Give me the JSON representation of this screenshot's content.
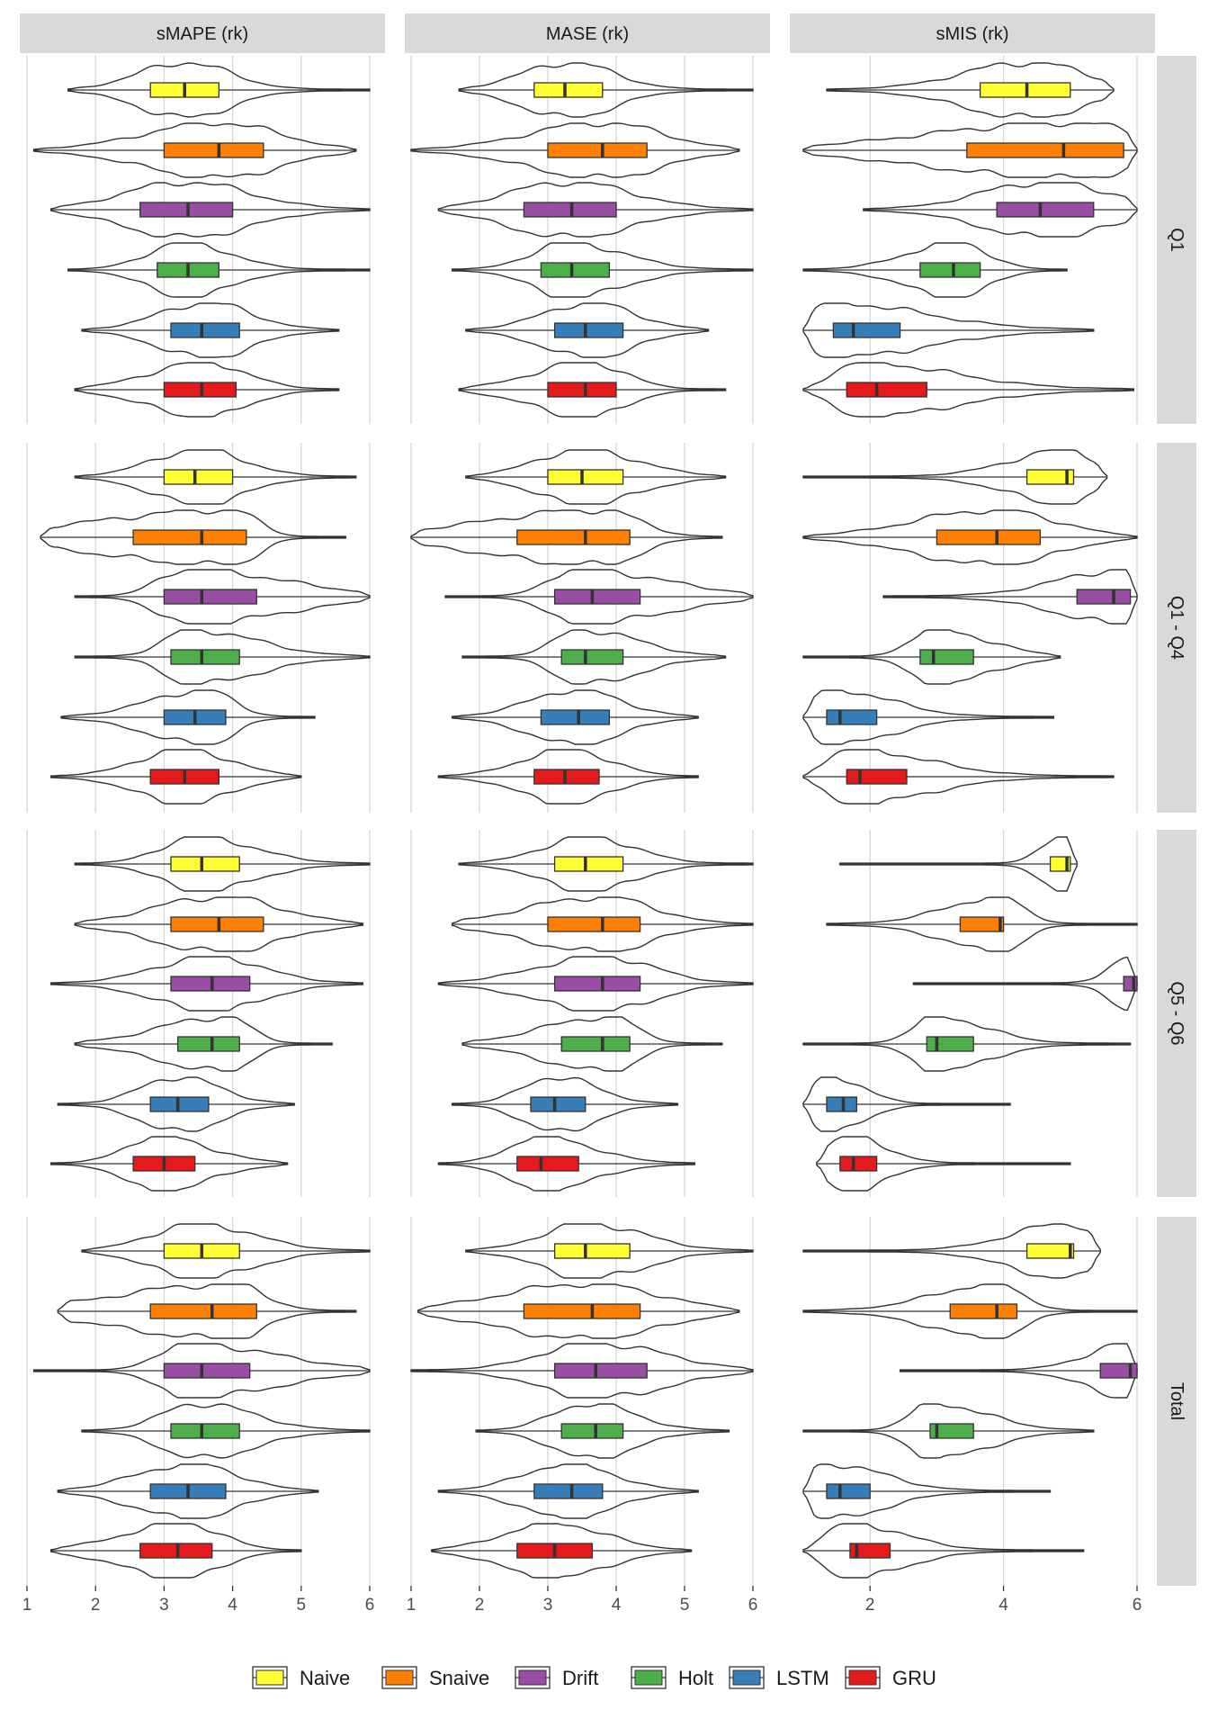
{
  "chart_data": {
    "type": "violin_box_faceted",
    "title": "",
    "columns": [
      {
        "label": "sMAPE (rk)",
        "xlim": [
          1,
          6
        ],
        "ticks": [
          1,
          2,
          3,
          4,
          5,
          6
        ]
      },
      {
        "label": "MASE (rk)",
        "xlim": [
          1,
          6
        ],
        "ticks": [
          1,
          2,
          3,
          4,
          5,
          6
        ]
      },
      {
        "label": "sMIS (rk)",
        "xlim": [
          1,
          6
        ],
        "ticks": [
          2,
          4,
          6
        ]
      }
    ],
    "rows": [
      "Q1",
      "Q1 - Q4",
      "Q5 - Q6",
      "Total"
    ],
    "grid": true,
    "legend_position": "bottom",
    "series": [
      {
        "name": "Naive",
        "color": "#FFFF33"
      },
      {
        "name": "Snaive",
        "color": "#FF7F00"
      },
      {
        "name": "Drift",
        "color": "#984EA3"
      },
      {
        "name": "Holt",
        "color": "#4DAF4A"
      },
      {
        "name": "LSTM",
        "color": "#377EB8"
      },
      {
        "name": "GRU",
        "color": "#E41A1C"
      }
    ],
    "panels": [
      [
        [
          {
            "min": 1.6,
            "q1": 2.8,
            "med": 3.3,
            "q3": 3.8,
            "max": 6.0,
            "mode": 3.3
          },
          {
            "min": 1.1,
            "q1": 3.0,
            "med": 3.8,
            "q3": 4.45,
            "max": 5.8,
            "mode": 3.8
          },
          {
            "min": 1.35,
            "q1": 2.65,
            "med": 3.35,
            "q3": 4.0,
            "max": 6.0,
            "mode": 3.3
          },
          {
            "min": 1.6,
            "q1": 2.9,
            "med": 3.35,
            "q3": 3.8,
            "max": 6.0,
            "mode": 3.3
          },
          {
            "min": 1.8,
            "q1": 3.1,
            "med": 3.55,
            "q3": 4.1,
            "max": 5.55,
            "mode": 3.6
          },
          {
            "min": 1.7,
            "q1": 3.0,
            "med": 3.55,
            "q3": 4.05,
            "max": 5.55,
            "mode": 3.6
          }
        ],
        [
          {
            "min": 1.7,
            "q1": 2.8,
            "med": 3.25,
            "q3": 3.8,
            "max": 6.0,
            "mode": 3.3
          },
          {
            "min": 1.0,
            "q1": 3.0,
            "med": 3.8,
            "q3": 4.45,
            "max": 5.8,
            "mode": 3.8
          },
          {
            "min": 1.4,
            "q1": 2.65,
            "med": 3.35,
            "q3": 4.0,
            "max": 6.0,
            "mode": 3.3
          },
          {
            "min": 1.6,
            "q1": 2.9,
            "med": 3.35,
            "q3": 3.9,
            "max": 6.0,
            "mode": 3.3
          },
          {
            "min": 1.8,
            "q1": 3.1,
            "med": 3.55,
            "q3": 4.1,
            "max": 5.35,
            "mode": 3.6
          },
          {
            "min": 1.7,
            "q1": 3.0,
            "med": 3.55,
            "q3": 4.0,
            "max": 5.6,
            "mode": 3.6
          }
        ],
        [
          {
            "min": 1.35,
            "q1": 3.65,
            "med": 4.35,
            "q3": 5.0,
            "max": 5.65,
            "mode": 4.4
          },
          {
            "min": 1.0,
            "q1": 3.45,
            "med": 4.9,
            "q3": 5.8,
            "max": 6.0,
            "mode": 5.0
          },
          {
            "min": 1.9,
            "q1": 3.9,
            "med": 4.55,
            "q3": 5.35,
            "max": 6.0,
            "mode": 4.6
          },
          {
            "min": 1.0,
            "q1": 2.75,
            "med": 3.25,
            "q3": 3.65,
            "max": 4.95,
            "mode": 3.3
          },
          {
            "min": 1.0,
            "q1": 1.45,
            "med": 1.75,
            "q3": 2.45,
            "max": 5.35,
            "mode": 1.4
          },
          {
            "min": 1.0,
            "q1": 1.65,
            "med": 2.1,
            "q3": 2.85,
            "max": 5.95,
            "mode": 1.8
          }
        ]
      ],
      [
        [
          {
            "min": 1.7,
            "q1": 3.0,
            "med": 3.45,
            "q3": 4.0,
            "max": 5.8,
            "mode": 3.5
          },
          {
            "min": 1.2,
            "q1": 2.55,
            "med": 3.55,
            "q3": 4.2,
            "max": 5.65,
            "mode": 4.0
          },
          {
            "min": 1.7,
            "q1": 3.0,
            "med": 3.55,
            "q3": 4.35,
            "max": 6.0,
            "mode": 3.3
          },
          {
            "min": 1.7,
            "q1": 3.1,
            "med": 3.55,
            "q3": 4.1,
            "max": 6.0,
            "mode": 3.4
          },
          {
            "min": 1.5,
            "q1": 3.0,
            "med": 3.45,
            "q3": 3.9,
            "max": 5.2,
            "mode": 3.6
          },
          {
            "min": 1.35,
            "q1": 2.8,
            "med": 3.3,
            "q3": 3.8,
            "max": 5.0,
            "mode": 3.3
          }
        ],
        [
          {
            "min": 1.8,
            "q1": 3.0,
            "med": 3.5,
            "q3": 4.1,
            "max": 5.6,
            "mode": 3.5
          },
          {
            "min": 1.0,
            "q1": 2.55,
            "med": 3.55,
            "q3": 4.2,
            "max": 5.55,
            "mode": 3.8
          },
          {
            "min": 1.5,
            "q1": 3.1,
            "med": 3.65,
            "q3": 4.35,
            "max": 6.0,
            "mode": 3.4
          },
          {
            "min": 1.75,
            "q1": 3.2,
            "med": 3.55,
            "q3": 4.1,
            "max": 5.6,
            "mode": 3.5
          },
          {
            "min": 1.6,
            "q1": 2.9,
            "med": 3.45,
            "q3": 3.9,
            "max": 5.2,
            "mode": 3.4
          },
          {
            "min": 1.4,
            "q1": 2.8,
            "med": 3.25,
            "q3": 3.75,
            "max": 5.2,
            "mode": 3.3
          }
        ],
        [
          {
            "min": 1.0,
            "q1": 4.35,
            "med": 4.95,
            "q3": 5.05,
            "max": 5.55,
            "mode": 5.0
          },
          {
            "min": 1.0,
            "q1": 3.0,
            "med": 3.9,
            "q3": 4.55,
            "max": 6.0,
            "mode": 3.9
          },
          {
            "min": 2.2,
            "q1": 5.1,
            "med": 5.65,
            "q3": 5.9,
            "max": 6.0,
            "mode": 5.85
          },
          {
            "min": 1.0,
            "q1": 2.75,
            "med": 2.95,
            "q3": 3.55,
            "max": 4.85,
            "mode": 2.95
          },
          {
            "min": 1.0,
            "q1": 1.35,
            "med": 1.55,
            "q3": 2.1,
            "max": 4.75,
            "mode": 1.45
          },
          {
            "min": 1.0,
            "q1": 1.65,
            "med": 1.85,
            "q3": 2.55,
            "max": 5.65,
            "mode": 1.7
          }
        ]
      ],
      [
        [
          {
            "min": 1.7,
            "q1": 3.1,
            "med": 3.55,
            "q3": 4.1,
            "max": 6.0,
            "mode": 3.5
          },
          {
            "min": 1.7,
            "q1": 3.1,
            "med": 3.8,
            "q3": 4.45,
            "max": 5.9,
            "mode": 3.8
          },
          {
            "min": 1.35,
            "q1": 3.1,
            "med": 3.7,
            "q3": 4.25,
            "max": 5.9,
            "mode": 3.7
          },
          {
            "min": 1.7,
            "q1": 3.2,
            "med": 3.7,
            "q3": 4.1,
            "max": 5.45,
            "mode": 3.9
          },
          {
            "min": 1.45,
            "q1": 2.8,
            "med": 3.2,
            "q3": 3.65,
            "max": 4.9,
            "mode": 3.2
          },
          {
            "min": 1.35,
            "q1": 2.55,
            "med": 3.0,
            "q3": 3.45,
            "max": 4.8,
            "mode": 2.9
          }
        ],
        [
          {
            "min": 1.7,
            "q1": 3.1,
            "med": 3.55,
            "q3": 4.1,
            "max": 6.0,
            "mode": 3.6
          },
          {
            "min": 1.6,
            "q1": 3.0,
            "med": 3.8,
            "q3": 4.35,
            "max": 6.0,
            "mode": 3.8
          },
          {
            "min": 1.4,
            "q1": 3.1,
            "med": 3.8,
            "q3": 4.35,
            "max": 6.0,
            "mode": 3.8
          },
          {
            "min": 1.75,
            "q1": 3.2,
            "med": 3.8,
            "q3": 4.2,
            "max": 5.55,
            "mode": 3.9
          },
          {
            "min": 1.6,
            "q1": 2.75,
            "med": 3.1,
            "q3": 3.55,
            "max": 4.9,
            "mode": 3.1
          },
          {
            "min": 1.4,
            "q1": 2.55,
            "med": 2.9,
            "q3": 3.45,
            "max": 5.15,
            "mode": 2.9
          }
        ],
        [
          {
            "min": 1.55,
            "q1": 4.7,
            "med": 4.95,
            "q3": 5.0,
            "max": 5.1,
            "mode": 4.95
          },
          {
            "min": 1.35,
            "q1": 3.35,
            "med": 3.95,
            "q3": 4.0,
            "max": 6.0,
            "mode": 3.95
          },
          {
            "min": 2.65,
            "q1": 5.8,
            "med": 5.95,
            "q3": 6.0,
            "max": 6.0,
            "mode": 5.97
          },
          {
            "min": 1.0,
            "q1": 2.85,
            "med": 3.0,
            "q3": 3.55,
            "max": 5.9,
            "mode": 3.0
          },
          {
            "min": 1.0,
            "q1": 1.35,
            "med": 1.6,
            "q3": 1.8,
            "max": 4.1,
            "mode": 1.45
          },
          {
            "min": 1.2,
            "q1": 1.55,
            "med": 1.75,
            "q3": 2.1,
            "max": 5.0,
            "mode": 1.7
          }
        ]
      ],
      [
        [
          {
            "min": 1.8,
            "q1": 3.0,
            "med": 3.55,
            "q3": 4.1,
            "max": 6.0,
            "mode": 3.5
          },
          {
            "min": 1.45,
            "q1": 2.8,
            "med": 3.7,
            "q3": 4.35,
            "max": 5.8,
            "mode": 4.0
          },
          {
            "min": 1.1,
            "q1": 3.0,
            "med": 3.55,
            "q3": 4.25,
            "max": 6.0,
            "mode": 3.3
          },
          {
            "min": 1.8,
            "q1": 3.1,
            "med": 3.55,
            "q3": 4.1,
            "max": 6.0,
            "mode": 3.5
          },
          {
            "min": 1.45,
            "q1": 2.8,
            "med": 3.35,
            "q3": 3.9,
            "max": 5.25,
            "mode": 3.4
          },
          {
            "min": 1.35,
            "q1": 2.65,
            "med": 3.2,
            "q3": 3.7,
            "max": 5.0,
            "mode": 3.3
          }
        ],
        [
          {
            "min": 1.8,
            "q1": 3.1,
            "med": 3.55,
            "q3": 4.2,
            "max": 6.0,
            "mode": 3.6
          },
          {
            "min": 1.1,
            "q1": 2.65,
            "med": 3.65,
            "q3": 4.35,
            "max": 5.8,
            "mode": 3.6
          },
          {
            "min": 1.0,
            "q1": 3.1,
            "med": 3.7,
            "q3": 4.45,
            "max": 6.0,
            "mode": 3.7
          },
          {
            "min": 1.95,
            "q1": 3.2,
            "med": 3.7,
            "q3": 4.1,
            "max": 5.65,
            "mode": 3.6
          },
          {
            "min": 1.4,
            "q1": 2.8,
            "med": 3.35,
            "q3": 3.8,
            "max": 5.2,
            "mode": 3.3
          },
          {
            "min": 1.3,
            "q1": 2.55,
            "med": 3.1,
            "q3": 3.65,
            "max": 5.1,
            "mode": 3.1
          }
        ],
        [
          {
            "min": 1.0,
            "q1": 4.35,
            "med": 5.0,
            "q3": 5.05,
            "max": 5.45,
            "mode": 5.0
          },
          {
            "min": 1.0,
            "q1": 3.2,
            "med": 3.9,
            "q3": 4.2,
            "max": 6.0,
            "mode": 3.9
          },
          {
            "min": 2.45,
            "q1": 5.45,
            "med": 5.9,
            "q3": 6.0,
            "max": 6.0,
            "mode": 5.95
          },
          {
            "min": 1.0,
            "q1": 2.9,
            "med": 3.0,
            "q3": 3.55,
            "max": 5.35,
            "mode": 2.95
          },
          {
            "min": 1.0,
            "q1": 1.35,
            "med": 1.55,
            "q3": 2.0,
            "max": 4.7,
            "mode": 1.4
          },
          {
            "min": 1.0,
            "q1": 1.7,
            "med": 1.8,
            "q3": 2.3,
            "max": 5.2,
            "mode": 1.7
          }
        ]
      ]
    ]
  }
}
